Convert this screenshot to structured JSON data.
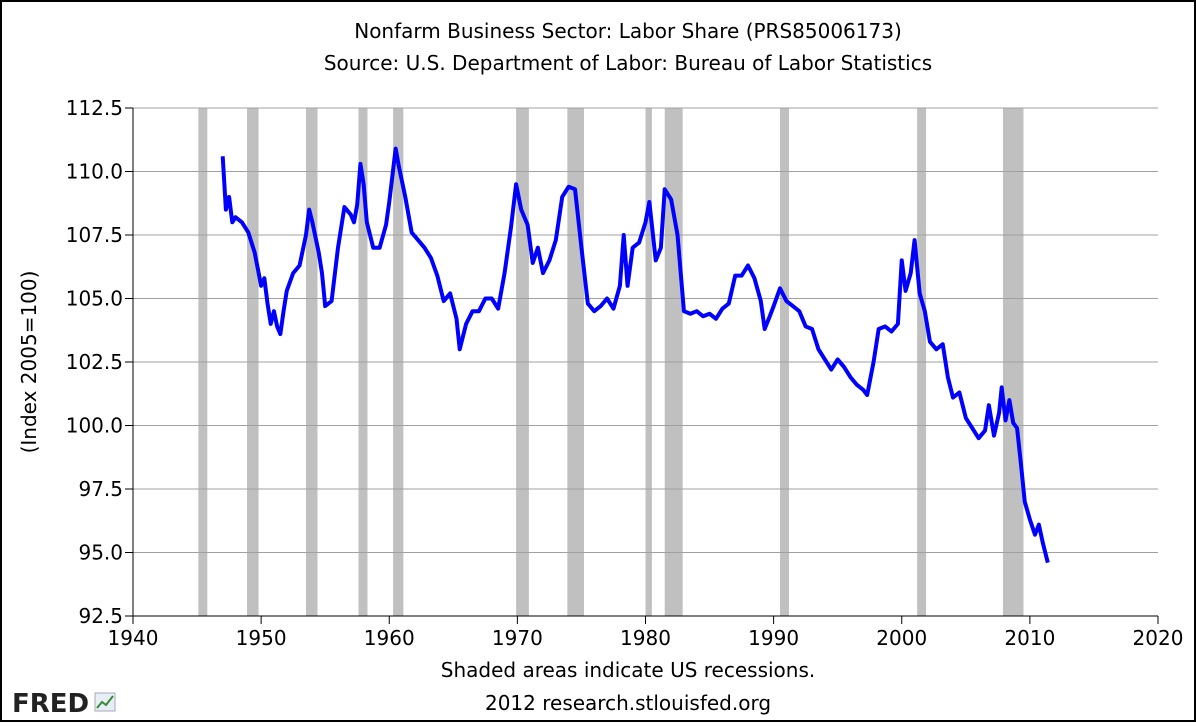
{
  "chart_data": {
    "type": "line",
    "title": "Nonfarm Business Sector: Labor Share (PRS85006173)",
    "subtitle": "Source: U.S. Department of Labor: Bureau of Labor Statistics",
    "y_label": "(Index 2005=100)",
    "note": "Shaded areas indicate US recessions.",
    "credit": "2012 research.stlouisfed.org",
    "logo": "FRED",
    "xlim": [
      1940,
      2020
    ],
    "xticks": [
      1940,
      1950,
      1960,
      1970,
      1980,
      1990,
      2000,
      2010,
      2020
    ],
    "ylim": [
      92.5,
      112.5
    ],
    "yticks": [
      92.5,
      {
        "value": 95,
        "label": "95.0"
      },
      97.5,
      {
        "value": 100,
        "label": "100.0"
      },
      102.5,
      {
        "value": 105,
        "label": "105.0"
      },
      107.5,
      {
        "value": 110,
        "label": "110.0"
      },
      112.5
    ],
    "grid": true,
    "recession_color": "#c0c0c0",
    "recessions": [
      [
        1945.1,
        1945.8
      ],
      [
        1948.9,
        1949.8
      ],
      [
        1953.5,
        1954.4
      ],
      [
        1957.6,
        1958.3
      ],
      [
        1960.3,
        1961.1
      ],
      [
        1969.9,
        1970.9
      ],
      [
        1973.9,
        1975.2
      ],
      [
        1980.0,
        1980.5
      ],
      [
        1981.5,
        1982.9
      ],
      [
        1990.5,
        1991.2
      ],
      [
        2001.2,
        2001.9
      ],
      [
        2007.9,
        2009.5
      ]
    ],
    "series": [
      {
        "color": "#0000ff",
        "x": [
          1947.0,
          1947.25,
          1947.5,
          1947.75,
          1948.0,
          1948.5,
          1949.0,
          1949.5,
          1950.0,
          1950.25,
          1950.5,
          1950.75,
          1951.0,
          1951.25,
          1951.5,
          1951.75,
          1952.0,
          1952.5,
          1953.0,
          1953.5,
          1953.75,
          1954.0,
          1954.5,
          1954.75,
          1955.0,
          1955.5,
          1956.0,
          1956.5,
          1957.0,
          1957.25,
          1957.5,
          1957.75,
          1958.0,
          1958.25,
          1958.75,
          1959.25,
          1959.75,
          1960.0,
          1960.5,
          1960.75,
          1961.25,
          1961.75,
          1962.25,
          1962.75,
          1963.25,
          1963.75,
          1964.25,
          1964.75,
          1965.25,
          1965.5,
          1966.0,
          1966.5,
          1967.0,
          1967.5,
          1968.0,
          1968.5,
          1969.0,
          1969.5,
          1969.9,
          1970.3,
          1970.8,
          1971.2,
          1971.6,
          1972.0,
          1972.5,
          1973.0,
          1973.5,
          1974.0,
          1974.5,
          1975.0,
          1975.5,
          1976.0,
          1976.5,
          1977.0,
          1977.5,
          1978.0,
          1978.3,
          1978.6,
          1979.0,
          1979.5,
          1980.0,
          1980.3,
          1980.8,
          1981.2,
          1981.5,
          1982.0,
          1982.5,
          1983.0,
          1983.5,
          1984.0,
          1984.5,
          1985.0,
          1985.5,
          1986.0,
          1986.5,
          1987.0,
          1987.5,
          1988.0,
          1988.5,
          1989.0,
          1989.3,
          1989.7,
          1990.0,
          1990.5,
          1991.0,
          1991.5,
          1992.0,
          1992.5,
          1993.0,
          1993.5,
          1994.0,
          1994.5,
          1995.0,
          1995.5,
          1996.0,
          1996.5,
          1997.0,
          1997.3,
          1997.8,
          1998.2,
          1998.7,
          1999.2,
          1999.7,
          2000.0,
          2000.3,
          2000.7,
          2001.0,
          2001.4,
          2001.8,
          2002.2,
          2002.7,
          2003.2,
          2003.6,
          2004.0,
          2004.5,
          2005.0,
          2005.5,
          2006.0,
          2006.5,
          2006.8,
          2007.2,
          2007.6,
          2007.8,
          2008.1,
          2008.4,
          2008.7,
          2009.0,
          2009.3,
          2009.6,
          2010.0,
          2010.4,
          2010.7,
          2011.0,
          2011.4
        ],
        "values": [
          110.6,
          108.5,
          109.0,
          108.0,
          108.2,
          108.0,
          107.6,
          106.8,
          105.5,
          105.8,
          104.8,
          104.0,
          104.5,
          103.9,
          103.6,
          104.5,
          105.3,
          106.0,
          106.3,
          107.5,
          108.5,
          108.0,
          106.8,
          106.0,
          104.7,
          104.9,
          107.0,
          108.6,
          108.3,
          108.0,
          108.7,
          110.3,
          109.5,
          108.0,
          107.0,
          107.0,
          107.9,
          108.8,
          110.9,
          110.2,
          109.0,
          107.6,
          107.3,
          107.0,
          106.6,
          105.9,
          104.9,
          105.2,
          104.2,
          103.0,
          104.0,
          104.5,
          104.5,
          105.0,
          105.0,
          104.6,
          106.0,
          107.8,
          109.5,
          108.5,
          107.9,
          106.4,
          107.0,
          106.0,
          106.5,
          107.3,
          109.0,
          109.4,
          109.3,
          107.0,
          104.8,
          104.5,
          104.7,
          105.0,
          104.6,
          105.5,
          107.5,
          105.5,
          107.0,
          107.2,
          108.0,
          108.8,
          106.5,
          107.0,
          109.3,
          108.9,
          107.5,
          104.5,
          104.4,
          104.5,
          104.3,
          104.4,
          104.2,
          104.6,
          104.8,
          105.9,
          105.9,
          106.3,
          105.8,
          104.9,
          103.8,
          104.3,
          104.7,
          105.4,
          104.9,
          104.7,
          104.5,
          103.9,
          103.8,
          103.0,
          102.6,
          102.2,
          102.6,
          102.3,
          101.9,
          101.6,
          101.4,
          101.2,
          102.5,
          103.8,
          103.9,
          103.7,
          104.0,
          106.5,
          105.3,
          106.0,
          107.3,
          105.2,
          104.5,
          103.3,
          103.0,
          103.2,
          101.9,
          101.1,
          101.3,
          100.3,
          99.9,
          99.5,
          99.8,
          100.8,
          99.6,
          100.5,
          101.5,
          100.2,
          101.0,
          100.1,
          99.9,
          98.5,
          97.0,
          96.3,
          95.7,
          96.1,
          95.4,
          94.6
        ]
      }
    ]
  }
}
